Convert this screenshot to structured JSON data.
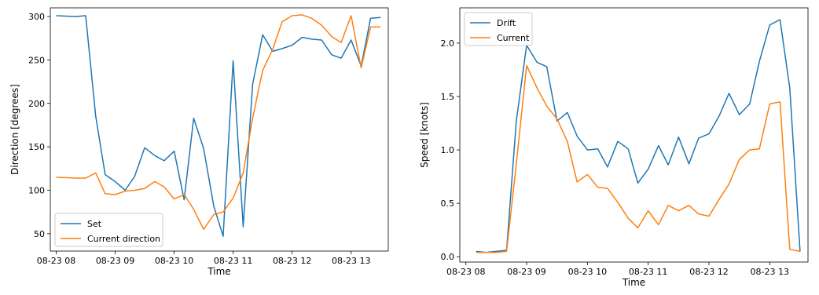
{
  "chart_data": [
    {
      "type": "line",
      "xlabel": "Time",
      "ylabel": "Direction [degrees]",
      "xlim": [
        7.9,
        13.63
      ],
      "ylim": [
        30,
        310
      ],
      "x_ticks": [
        8,
        9,
        10,
        11,
        12,
        13
      ],
      "x_tick_labels": [
        "08-23 08",
        "08-23 09",
        "08-23 10",
        "08-23 11",
        "08-23 12",
        "08-23 13"
      ],
      "y_ticks": [
        50,
        100,
        150,
        200,
        250,
        300
      ],
      "y_tick_labels": [
        "50",
        "100",
        "150",
        "200",
        "250",
        "300"
      ],
      "legend_position": "lower-left",
      "series": [
        {
          "name": "Set",
          "color": "#1f77b4",
          "x": [
            8.0,
            8.33,
            8.5,
            8.67,
            8.83,
            9.0,
            9.17,
            9.33,
            9.5,
            9.67,
            9.83,
            10.0,
            10.17,
            10.33,
            10.5,
            10.67,
            10.83,
            11.0,
            11.17,
            11.33,
            11.5,
            11.67,
            11.83,
            12.0,
            12.17,
            12.33,
            12.5,
            12.67,
            12.83,
            13.0,
            13.17,
            13.33,
            13.5
          ],
          "y": [
            301,
            300,
            301,
            185,
            118,
            110,
            100,
            116,
            149,
            140,
            134,
            145,
            89,
            183,
            148,
            82,
            47,
            249,
            58,
            222,
            279,
            260,
            263,
            267,
            276,
            274,
            273,
            256,
            252,
            273,
            243,
            298,
            299
          ]
        },
        {
          "name": "Current direction",
          "color": "#ff7f0e",
          "x": [
            8.0,
            8.33,
            8.5,
            8.67,
            8.83,
            9.0,
            9.17,
            9.33,
            9.5,
            9.67,
            9.83,
            10.0,
            10.17,
            10.33,
            10.5,
            10.67,
            10.83,
            11.0,
            11.17,
            11.33,
            11.5,
            11.67,
            11.83,
            12.0,
            12.17,
            12.33,
            12.5,
            12.67,
            12.83,
            13.0,
            13.17,
            13.33,
            13.5
          ],
          "y": [
            115,
            114,
            114,
            120,
            96,
            95,
            99,
            100,
            102,
            110,
            104,
            90,
            95,
            78,
            55,
            72,
            75,
            91,
            120,
            183,
            238,
            262,
            294,
            301,
            302,
            298,
            290,
            277,
            270,
            301,
            241,
            288,
            288
          ]
        }
      ]
    },
    {
      "type": "line",
      "xlabel": "Time",
      "ylabel": "Speed [knots]",
      "xlim": [
        7.9,
        13.63
      ],
      "ylim": [
        -0.05,
        2.33
      ],
      "x_ticks": [
        8,
        9,
        10,
        11,
        12,
        13
      ],
      "x_tick_labels": [
        "08-23 08",
        "08-23 09",
        "08-23 10",
        "08-23 11",
        "08-23 12",
        "08-23 13"
      ],
      "y_ticks": [
        0.0,
        0.5,
        1.0,
        1.5,
        2.0
      ],
      "y_tick_labels": [
        "0.0",
        "0.5",
        "1.0",
        "1.5",
        "2.0"
      ],
      "legend_position": "upper-left",
      "series": [
        {
          "name": "Drift",
          "color": "#1f77b4",
          "x": [
            8.17,
            8.33,
            8.5,
            8.67,
            8.83,
            9.0,
            9.17,
            9.33,
            9.5,
            9.67,
            9.83,
            10.0,
            10.17,
            10.33,
            10.5,
            10.67,
            10.83,
            11.0,
            11.17,
            11.33,
            11.5,
            11.67,
            11.83,
            12.0,
            12.17,
            12.33,
            12.5,
            12.67,
            12.83,
            13.0,
            13.17,
            13.33,
            13.5
          ],
          "y": [
            0.05,
            0.04,
            0.05,
            0.06,
            1.27,
            1.98,
            1.82,
            1.78,
            1.27,
            1.35,
            1.13,
            1.0,
            1.01,
            0.84,
            1.08,
            1.01,
            0.69,
            0.82,
            1.04,
            0.86,
            1.12,
            0.87,
            1.11,
            1.15,
            1.32,
            1.53,
            1.33,
            1.43,
            1.83,
            2.17,
            2.22,
            1.58,
            0.05
          ]
        },
        {
          "name": "Current",
          "color": "#ff7f0e",
          "x": [
            8.17,
            8.33,
            8.5,
            8.67,
            8.83,
            9.0,
            9.17,
            9.33,
            9.5,
            9.67,
            9.83,
            10.0,
            10.17,
            10.33,
            10.5,
            10.67,
            10.83,
            11.0,
            11.17,
            11.33,
            11.5,
            11.67,
            11.83,
            12.0,
            12.17,
            12.33,
            12.5,
            12.67,
            12.83,
            13.0,
            13.17,
            13.33,
            13.5
          ],
          "y": [
            0.04,
            0.04,
            0.04,
            0.05,
            0.87,
            1.79,
            1.58,
            1.41,
            1.29,
            1.08,
            0.7,
            0.77,
            0.65,
            0.64,
            0.51,
            0.36,
            0.27,
            0.43,
            0.3,
            0.48,
            0.43,
            0.48,
            0.4,
            0.38,
            0.54,
            0.68,
            0.91,
            1.0,
            1.01,
            1.43,
            1.45,
            0.07,
            0.05
          ]
        }
      ]
    }
  ]
}
